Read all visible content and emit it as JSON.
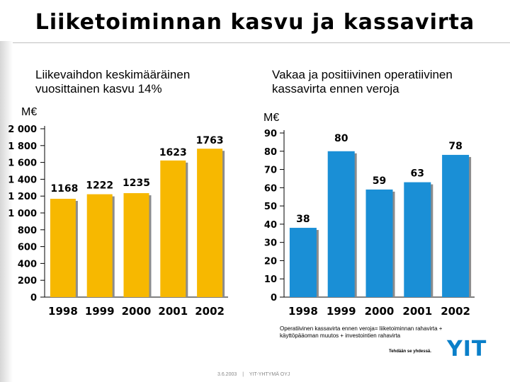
{
  "slide": {
    "title": "Liiketoiminnan kasvu ja kassavirta",
    "footnote": "Operatiivinen kassavirta ennen veroja= liiketoiminnan rahavirta + käyttöpääoman muutos + investointien rahavirta",
    "tagline": "Tehdään se yhdessä.",
    "logo": "YIT",
    "footer": {
      "date": "3.6.2003",
      "separator": "|",
      "company": "YIT-YHTYMÄ OYJ"
    }
  },
  "chart_data": [
    {
      "type": "bar",
      "title": "Liikevaihdon keskimääräinen vuosittainen kasvu 14%",
      "title_lines": [
        "Liikevaihdon keskimääräinen",
        "vuosittainen kasvu 14%"
      ],
      "unit": "M€",
      "categories": [
        "1998",
        "1999",
        "2000",
        "2001",
        "2002"
      ],
      "values": [
        1168,
        1222,
        1235,
        1623,
        1763
      ],
      "value_labels": [
        "1168",
        "1222",
        "1235",
        "1623",
        "1763"
      ],
      "ylim": [
        0,
        2000
      ],
      "yticks": [
        0,
        200,
        400,
        600,
        800,
        1000,
        1200,
        1400,
        1600,
        1800,
        2000
      ],
      "ytick_labels": [
        "0",
        "200",
        "400",
        "600",
        "800",
        "1 000",
        "1 200",
        "1 400",
        "1 600",
        "1 800",
        "2 000"
      ],
      "color": "#f7b800",
      "grid": false
    },
    {
      "type": "bar",
      "title": "Vakaa ja positiivinen operatiivinen kassavirta ennen veroja",
      "title_lines": [
        "Vakaa ja positiivinen operatiivinen",
        "kassavirta ennen veroja"
      ],
      "unit": "M€",
      "categories": [
        "1998",
        "1999",
        "2000",
        "2001",
        "2002"
      ],
      "values": [
        38,
        80,
        59,
        63,
        78
      ],
      "value_labels": [
        "38",
        "80",
        "59",
        "63",
        "78"
      ],
      "ylim": [
        0,
        90
      ],
      "yticks": [
        0,
        10,
        20,
        30,
        40,
        50,
        60,
        70,
        80,
        90
      ],
      "ytick_labels": [
        "0",
        "10",
        "20",
        "30",
        "40",
        "50",
        "60",
        "70",
        "80",
        "90"
      ],
      "color": "#1a8fd6",
      "grid": false
    }
  ]
}
